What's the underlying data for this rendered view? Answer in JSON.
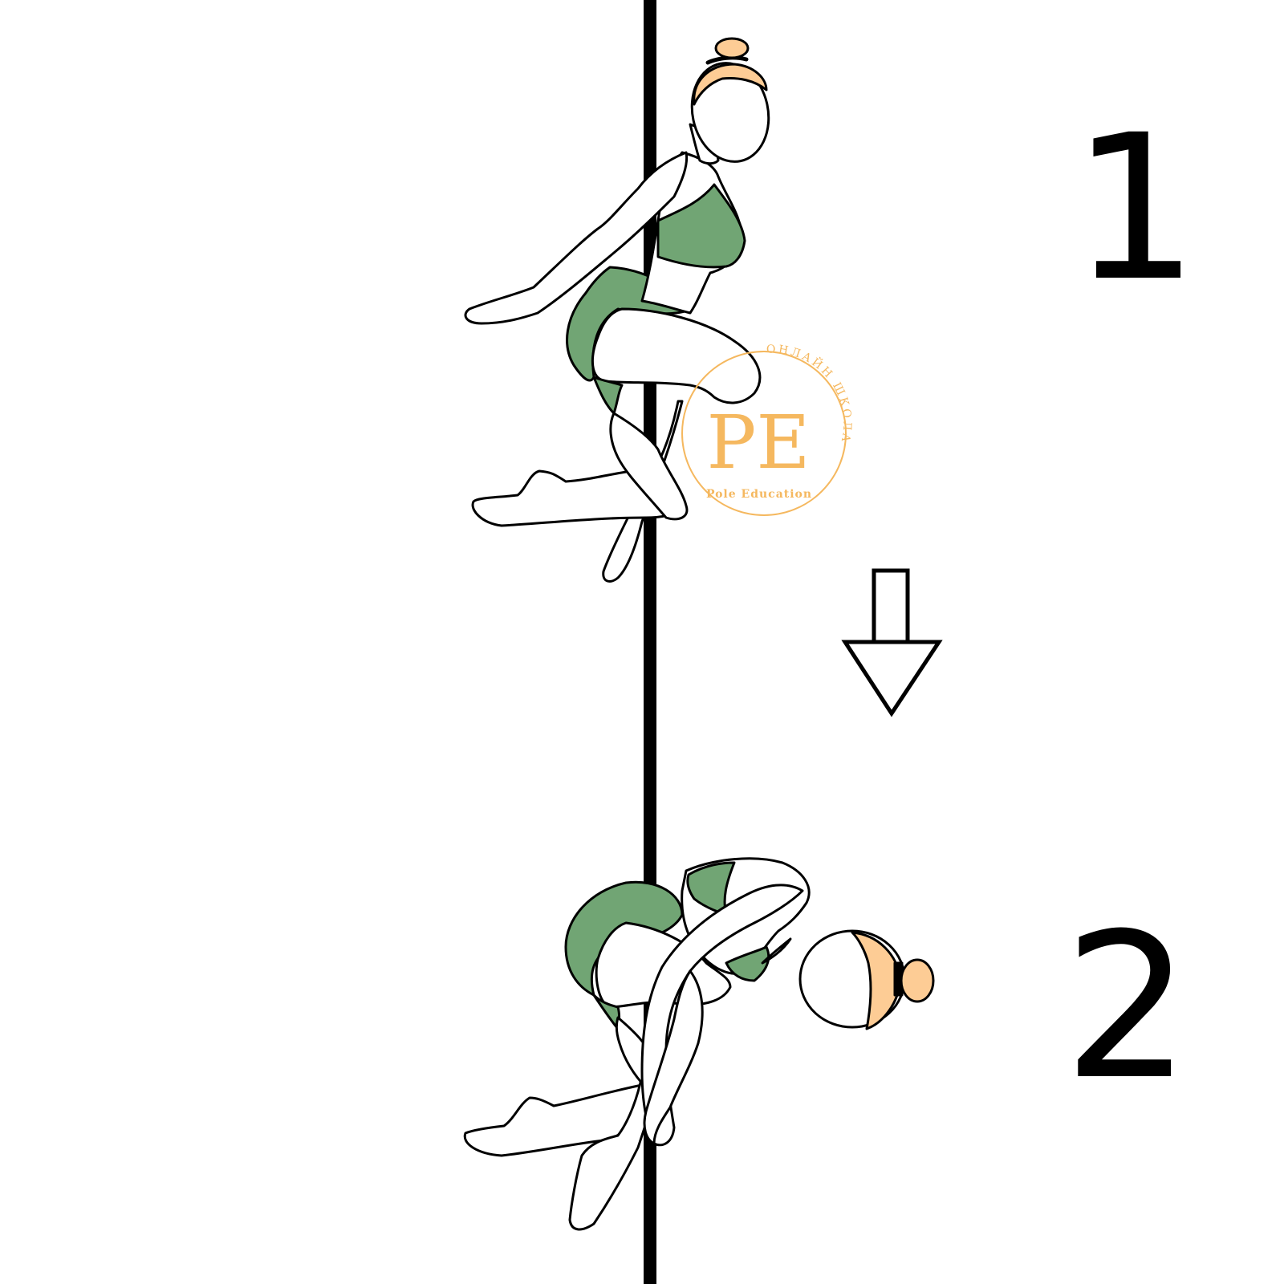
{
  "steps": [
    {
      "label": "1"
    },
    {
      "label": "2"
    }
  ],
  "watermark": {
    "monogram": "PE",
    "arc_text": "ОНЛАЙН ШКОЛА",
    "name": "Pole Education"
  },
  "colors": {
    "outfit": "#71a574",
    "hair": "#fdcc95",
    "outline": "#000000",
    "watermark": "#f5b85f",
    "background": "#ffffff"
  },
  "icons": {
    "direction": "arrow-down-icon",
    "apparatus": "pole"
  }
}
